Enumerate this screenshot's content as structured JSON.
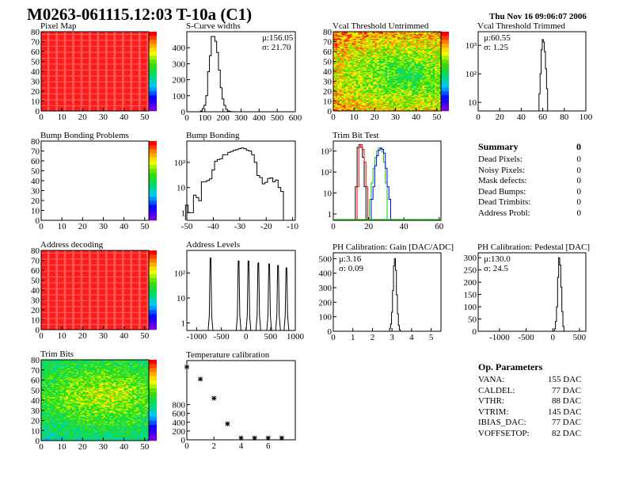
{
  "header": {
    "title": "M0263-061115.12:03 T-10a (C1)",
    "date": "Thu Nov 16 09:06:07 2006"
  },
  "summary": {
    "title": "Summary",
    "total": "0",
    "rows": [
      {
        "label": "Dead Pixels:",
        "value": "0"
      },
      {
        "label": "Noisy Pixels:",
        "value": "0"
      },
      {
        "label": "Mask defects:",
        "value": "0"
      },
      {
        "label": "Dead Bumps:",
        "value": "0"
      },
      {
        "label": "Dead Trimbits:",
        "value": "0"
      },
      {
        "label": "Address Probl:",
        "value": "0"
      }
    ]
  },
  "op_parameters": {
    "title": "Op. Parameters",
    "rows": [
      {
        "label": "VANA:",
        "value": "155 DAC"
      },
      {
        "label": "CALDEL:",
        "value": "77 DAC"
      },
      {
        "label": "VTHR:",
        "value": "88 DAC"
      },
      {
        "label": "VTRIM:",
        "value": "145 DAC"
      },
      {
        "label": "IBIAS_DAC:",
        "value": "77 DAC"
      },
      {
        "label": "VOFFSETOP:",
        "value": "82 DAC"
      }
    ]
  },
  "colors": {
    "hist_line": "#000000",
    "trim_series": [
      "#000000",
      "#ff0000",
      "#00cc00",
      "#0000ff"
    ]
  },
  "chart_data": [
    {
      "id": "pixel-map",
      "type": "heatmap",
      "title": "Pixel Map",
      "xlim": [
        0,
        52
      ],
      "ylim": [
        0,
        80
      ],
      "xticks": [
        0,
        10,
        20,
        30,
        40,
        50
      ],
      "yticks": [
        0,
        10,
        20,
        30,
        40,
        50,
        60,
        70,
        80
      ],
      "pattern": "uniform-max",
      "zrange": [
        0,
        10
      ]
    },
    {
      "id": "s-curve-widths",
      "type": "bar",
      "title": "S-Curve widths",
      "stats": [
        "μ:156.05",
        "σ: 21.70"
      ],
      "xlim": [
        0,
        600
      ],
      "ylim": [
        0,
        500
      ],
      "xticks": [
        0,
        100,
        200,
        300,
        400,
        500,
        600
      ],
      "yticks": [
        0,
        100,
        200,
        300,
        400
      ],
      "binwidth": 10,
      "x": [
        80,
        90,
        100,
        110,
        120,
        130,
        140,
        150,
        160,
        170,
        180,
        190,
        200,
        210,
        220,
        230,
        240
      ],
      "values": [
        5,
        20,
        40,
        100,
        250,
        350,
        470,
        470,
        440,
        370,
        260,
        150,
        80,
        40,
        15,
        5,
        2
      ]
    },
    {
      "id": "vcal-threshold-untrimmed",
      "type": "heatmap",
      "title": "Vcal Threshold Untrimmed",
      "xlim": [
        0,
        52
      ],
      "ylim": [
        0,
        80
      ],
      "xticks": [
        0,
        10,
        20,
        30,
        40,
        50
      ],
      "yticks": [
        0,
        10,
        20,
        30,
        40,
        50,
        60,
        70,
        80
      ],
      "pattern": "noise",
      "zrange": [
        85,
        120
      ]
    },
    {
      "id": "vcal-threshold-trimmed",
      "type": "bar",
      "logy": true,
      "title": "Vcal Threshold Trimmed",
      "stats": [
        "μ:60.55",
        "σ: 1.25"
      ],
      "xlim": [
        0,
        100
      ],
      "ylim": [
        5,
        3000
      ],
      "xticks": [
        0,
        20,
        40,
        60,
        80,
        100
      ],
      "yticks": [
        10,
        100,
        1000
      ],
      "ytick_labels": [
        "10",
        "10²",
        "10³"
      ],
      "binwidth": 1,
      "x": [
        56,
        57,
        58,
        59,
        60,
        61,
        62,
        63,
        64
      ],
      "values": [
        5,
        20,
        100,
        700,
        1600,
        1300,
        600,
        150,
        30
      ]
    },
    {
      "id": "bump-bonding-problems",
      "type": "heatmap",
      "title": "Bump Bonding Problems",
      "xlim": [
        0,
        52
      ],
      "ylim": [
        0,
        80
      ],
      "xticks": [
        0,
        10,
        20,
        30,
        40,
        50
      ],
      "yticks": [
        0,
        10,
        20,
        30,
        40,
        50,
        60,
        70,
        80
      ],
      "pattern": "empty",
      "zrange": [
        0,
        1
      ]
    },
    {
      "id": "bump-bonding",
      "type": "bar",
      "logy": true,
      "title": "Bump Bonding",
      "xlim": [
        -50,
        -9
      ],
      "ylim": [
        0.5,
        700
      ],
      "xticks": [
        -50,
        -40,
        -30,
        -20,
        -10
      ],
      "yticks": [
        1,
        10,
        100
      ],
      "ytick_labels": [
        "1",
        "10",
        "10²"
      ],
      "binwidth": 1,
      "x": [
        -50,
        -49,
        -48,
        -47,
        -46,
        -45,
        -44,
        -43,
        -42,
        -41,
        -40,
        -39,
        -38,
        -37,
        -36,
        -35,
        -34,
        -33,
        -32,
        -31,
        -30,
        -29,
        -28,
        -27,
        -26,
        -25,
        -24,
        -23,
        -22,
        -21,
        -20,
        -19,
        -18,
        -17,
        -16,
        -15,
        -14
      ],
      "values": [
        2,
        1,
        1,
        5,
        4,
        3,
        17,
        17,
        19,
        22,
        50,
        110,
        130,
        140,
        200,
        200,
        250,
        270,
        300,
        320,
        350,
        370,
        350,
        300,
        280,
        200,
        100,
        30,
        25,
        14,
        16,
        23,
        24,
        17,
        20,
        10,
        7
      ]
    },
    {
      "id": "trim-bit-test",
      "type": "line",
      "logy": true,
      "title": "Trim Bit Test",
      "xlim": [
        0,
        61
      ],
      "ylim": [
        0.5,
        3000
      ],
      "xticks": [
        0,
        20,
        40,
        60
      ],
      "yticks": [
        1,
        10,
        100,
        1000
      ],
      "ytick_labels": [
        "1",
        "10",
        "10²",
        "10³"
      ],
      "binwidth": 1,
      "series": [
        {
          "x": [
            13,
            14,
            15,
            16,
            17,
            18
          ],
          "values": [
            20,
            1500,
            2000,
            1500,
            500,
            20
          ]
        },
        {
          "x": [
            14,
            15,
            16,
            17,
            18,
            19
          ],
          "values": [
            20,
            1500,
            2000,
            1200,
            300,
            20
          ]
        },
        {
          "x": [
            21,
            22,
            23,
            24,
            25,
            26,
            27,
            28,
            29,
            30
          ],
          "values": [
            5,
            30,
            150,
            500,
            1000,
            1400,
            1300,
            900,
            300,
            30
          ]
        },
        {
          "x": [
            22,
            23,
            24,
            25,
            26,
            27,
            28,
            29,
            30,
            31,
            32
          ],
          "values": [
            5,
            20,
            200,
            600,
            1100,
            1400,
            1200,
            800,
            150,
            20,
            5
          ]
        }
      ]
    },
    {
      "id": "address-decoding",
      "type": "heatmap",
      "title": "Address decoding",
      "xlim": [
        0,
        52
      ],
      "ylim": [
        0,
        80
      ],
      "xticks": [
        0,
        10,
        20,
        30,
        40,
        50
      ],
      "yticks": [
        0,
        10,
        20,
        30,
        40,
        50,
        60,
        70,
        80
      ],
      "pattern": "uniform-max",
      "zrange": [
        0,
        1
      ]
    },
    {
      "id": "address-levels",
      "type": "bar",
      "logy": true,
      "title": "Address Levels",
      "xlim": [
        -1200,
        1000
      ],
      "ylim": [
        0.5,
        800
      ],
      "xticks": [
        -1000,
        -500,
        0,
        500,
        1000
      ],
      "yticks": [
        1,
        10,
        100
      ],
      "ytick_labels": [
        "1",
        "10",
        "10²"
      ],
      "peaks": [
        -720,
        -150,
        50,
        250,
        470,
        650,
        820
      ],
      "values": [
        400,
        300,
        300,
        250,
        230,
        200,
        160
      ]
    },
    {
      "id": "ph-calibration-gain",
      "type": "bar",
      "title": "PH Calibration: Gain [DAC/ADC]",
      "stats": [
        "μ:3.16",
        "σ: 0.09"
      ],
      "xlim": [
        0,
        5.5
      ],
      "ylim": [
        0,
        540
      ],
      "xticks": [
        0,
        1,
        2,
        3,
        4,
        5
      ],
      "yticks": [
        0,
        100,
        200,
        300,
        400,
        500
      ],
      "binwidth": 0.05,
      "x": [
        2.9,
        2.95,
        3.0,
        3.05,
        3.1,
        3.15,
        3.2,
        3.25,
        3.3,
        3.35,
        3.4
      ],
      "values": [
        20,
        50,
        130,
        280,
        450,
        500,
        420,
        250,
        120,
        40,
        10
      ]
    },
    {
      "id": "ph-calibration-pedestal",
      "type": "bar",
      "title": "PH Calibration: Pedestal [DAC]",
      "stats": [
        "μ:130.0",
        "σ: 24.5"
      ],
      "xlim": [
        -1400,
        620
      ],
      "ylim": [
        0,
        320
      ],
      "xticks": [
        -1000,
        -500,
        0,
        500
      ],
      "yticks": [
        0,
        50,
        100,
        150,
        200,
        250,
        300
      ],
      "binwidth": 20,
      "x": [
        40,
        60,
        80,
        100,
        120,
        140,
        160,
        180,
        200
      ],
      "values": [
        10,
        40,
        100,
        220,
        300,
        270,
        180,
        80,
        20
      ]
    },
    {
      "id": "trim-bits",
      "type": "heatmap",
      "title": "Trim Bits",
      "xlim": [
        0,
        52
      ],
      "ylim": [
        0,
        80
      ],
      "xticks": [
        0,
        10,
        20,
        30,
        40,
        50
      ],
      "yticks": [
        0,
        10,
        20,
        30,
        40,
        50,
        60,
        70,
        80
      ],
      "pattern": "noise-warm",
      "zrange": [
        0,
        15
      ]
    },
    {
      "id": "temperature-calibration",
      "type": "scatter",
      "title": "Temperature calibration",
      "xlim": [
        0,
        8
      ],
      "ylim": [
        0,
        1800
      ],
      "xticks": [
        0,
        2,
        4,
        6
      ],
      "yticks": [
        0,
        200,
        400,
        600,
        800
      ],
      "x": [
        0,
        1,
        2,
        3,
        4,
        5,
        6,
        7
      ],
      "values": [
        1655,
        1380,
        945,
        364,
        40,
        40,
        40,
        40
      ]
    }
  ]
}
